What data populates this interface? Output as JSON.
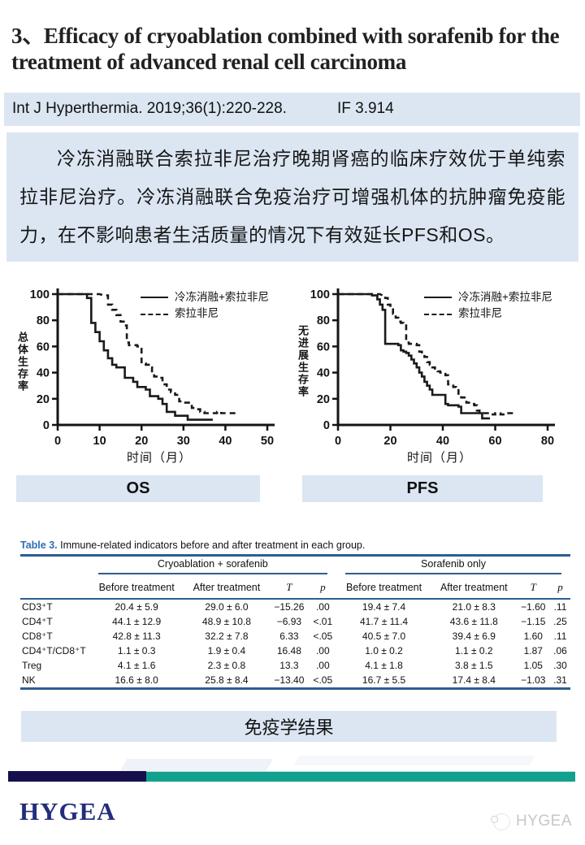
{
  "header": {
    "title": "3、Efficacy of cryoablation combined with sorafenib for the treatment of advanced renal cell carcinoma",
    "journal": "Int J Hyperthermia. 2019;36(1):220-228.",
    "impact_factor": "IF 3.914"
  },
  "summary": {
    "text": "冷冻消融联合索拉非尼治疗晚期肾癌的临床疗效优于单纯索拉非尼治疗。冷冻消融联合免疫治疗可增强机体的抗肿瘤免疫能力，在不影响患者生活质量的情况下有效延长PFS和OS。"
  },
  "chart_data": [
    {
      "type": "line",
      "subtype": "kaplan-meier-step",
      "title": "OS",
      "xlabel": "时间（月）",
      "ylabel": "总体生存率",
      "xlim": [
        0,
        50
      ],
      "ylim": [
        0,
        100
      ],
      "xticks": [
        0,
        10,
        20,
        30,
        40,
        50
      ],
      "yticks": [
        0,
        20,
        40,
        60,
        80,
        100
      ],
      "grid": false,
      "legend_position": "top-right",
      "series": [
        {
          "name": "冷冻消融+索拉非尼",
          "style": "solid",
          "points": [
            [
              0,
              100
            ],
            [
              7,
              100
            ],
            [
              7,
              97
            ],
            [
              8,
              97
            ],
            [
              8,
              78
            ],
            [
              9,
              78
            ],
            [
              9,
              71
            ],
            [
              10,
              71
            ],
            [
              10,
              64
            ],
            [
              11,
              64
            ],
            [
              11,
              57
            ],
            [
              12,
              57
            ],
            [
              12,
              51
            ],
            [
              13,
              51
            ],
            [
              13,
              46
            ],
            [
              14,
              46
            ],
            [
              14,
              44
            ],
            [
              16,
              44
            ],
            [
              16,
              36
            ],
            [
              18,
              36
            ],
            [
              18,
              33
            ],
            [
              19,
              33
            ],
            [
              19,
              29
            ],
            [
              21,
              29
            ],
            [
              21,
              27
            ],
            [
              22,
              27
            ],
            [
              22,
              22
            ],
            [
              24,
              22
            ],
            [
              24,
              20
            ],
            [
              25,
              20
            ],
            [
              25,
              16
            ],
            [
              26,
              16
            ],
            [
              26,
              10
            ],
            [
              28,
              10
            ],
            [
              28,
              7
            ],
            [
              31,
              7
            ],
            [
              31,
              4
            ],
            [
              37,
              4
            ]
          ]
        },
        {
          "name": "索拉非尼",
          "style": "dashed",
          "points": [
            [
              0,
              100
            ],
            [
              10,
              100
            ],
            [
              11,
              99
            ],
            [
              12,
              99
            ],
            [
              12,
              92
            ],
            [
              13,
              92
            ],
            [
              13,
              88
            ],
            [
              14,
              88
            ],
            [
              14,
              84
            ],
            [
              15,
              84
            ],
            [
              15,
              79
            ],
            [
              16,
              79
            ],
            [
              16,
              76
            ],
            [
              16.5,
              76
            ],
            [
              16.5,
              63
            ],
            [
              17,
              63
            ],
            [
              17,
              61
            ],
            [
              19,
              61
            ],
            [
              19,
              60
            ],
            [
              20,
              60
            ],
            [
              20,
              47
            ],
            [
              21,
              47
            ],
            [
              21,
              46
            ],
            [
              22,
              46
            ],
            [
              22,
              44
            ],
            [
              22.5,
              44
            ],
            [
              22.5,
              39
            ],
            [
              23,
              39
            ],
            [
              23,
              37
            ],
            [
              24,
              37
            ],
            [
              24,
              36
            ],
            [
              25,
              36
            ],
            [
              25,
              31
            ],
            [
              26,
              31
            ],
            [
              26,
              27
            ],
            [
              27,
              27
            ],
            [
              27,
              25
            ],
            [
              28,
              25
            ],
            [
              28,
              23
            ],
            [
              29,
              23
            ],
            [
              29,
              18
            ],
            [
              30,
              18
            ],
            [
              30,
              17
            ],
            [
              32,
              17
            ],
            [
              32,
              13
            ],
            [
              33,
              13
            ],
            [
              33,
              12
            ],
            [
              34,
              12
            ],
            [
              34,
              10
            ],
            [
              35,
              10
            ],
            [
              35,
              9
            ],
            [
              38,
              9
            ],
            [
              38,
              10
            ],
            [
              39,
              10
            ],
            [
              39,
              9
            ],
            [
              43,
              9
            ]
          ]
        }
      ]
    },
    {
      "type": "line",
      "subtype": "kaplan-meier-step",
      "title": "PFS",
      "xlabel": "时间（月）",
      "ylabel": "无进展生存率",
      "xlim": [
        0,
        80
      ],
      "ylim": [
        0,
        100
      ],
      "xticks": [
        0,
        20,
        40,
        60,
        80
      ],
      "yticks": [
        0,
        20,
        40,
        60,
        80,
        100
      ],
      "grid": false,
      "legend_position": "top-right",
      "series": [
        {
          "name": "冷冻消融+索拉非尼",
          "style": "solid",
          "points": [
            [
              0,
              100
            ],
            [
              13,
              100
            ],
            [
              13,
              99
            ],
            [
              15,
              99
            ],
            [
              15,
              96
            ],
            [
              16,
              96
            ],
            [
              16,
              92
            ],
            [
              17,
              92
            ],
            [
              17,
              88
            ],
            [
              18,
              88
            ],
            [
              18,
              62
            ],
            [
              23,
              62
            ],
            [
              23,
              61
            ],
            [
              24,
              61
            ],
            [
              24,
              57
            ],
            [
              25,
              57
            ],
            [
              25,
              56
            ],
            [
              26,
              56
            ],
            [
              26,
              55
            ],
            [
              27,
              55
            ],
            [
              27,
              53
            ],
            [
              28,
              53
            ],
            [
              28,
              50
            ],
            [
              29,
              50
            ],
            [
              29,
              47
            ],
            [
              30,
              47
            ],
            [
              30,
              44
            ],
            [
              31,
              44
            ],
            [
              31,
              40
            ],
            [
              32,
              40
            ],
            [
              32,
              37
            ],
            [
              33,
              37
            ],
            [
              33,
              33
            ],
            [
              34,
              33
            ],
            [
              34,
              30
            ],
            [
              35,
              30
            ],
            [
              35,
              27
            ],
            [
              36,
              27
            ],
            [
              36,
              23
            ],
            [
              41,
              23
            ],
            [
              41,
              16
            ],
            [
              42,
              16
            ],
            [
              42,
              15
            ],
            [
              46,
              15
            ],
            [
              46,
              14
            ],
            [
              47,
              14
            ],
            [
              47,
              9
            ],
            [
              55,
              9
            ],
            [
              55,
              5
            ],
            [
              58,
              5
            ]
          ]
        },
        {
          "name": "索拉非尼",
          "style": "dashed",
          "points": [
            [
              0,
              100
            ],
            [
              16,
              100
            ],
            [
              17,
              99
            ],
            [
              18,
              99
            ],
            [
              18,
              97
            ],
            [
              19,
              97
            ],
            [
              19,
              92
            ],
            [
              20,
              92
            ],
            [
              20,
              90
            ],
            [
              21,
              90
            ],
            [
              21,
              85
            ],
            [
              22,
              85
            ],
            [
              22,
              82
            ],
            [
              23,
              82
            ],
            [
              23,
              79
            ],
            [
              24,
              79
            ],
            [
              24,
              78
            ],
            [
              25,
              78
            ],
            [
              25,
              76
            ],
            [
              26,
              76
            ],
            [
              26,
              63
            ],
            [
              27,
              63
            ],
            [
              27,
              62
            ],
            [
              30,
              62
            ],
            [
              30,
              61
            ],
            [
              31,
              61
            ],
            [
              31,
              56
            ],
            [
              32,
              56
            ],
            [
              32,
              54
            ],
            [
              33,
              54
            ],
            [
              33,
              52
            ],
            [
              34,
              52
            ],
            [
              34,
              48
            ],
            [
              35,
              48
            ],
            [
              35,
              46
            ],
            [
              36,
              46
            ],
            [
              36,
              44
            ],
            [
              37,
              44
            ],
            [
              37,
              42
            ],
            [
              38,
              42
            ],
            [
              38,
              41
            ],
            [
              39,
              41
            ],
            [
              39,
              40
            ],
            [
              40,
              40
            ],
            [
              40,
              39
            ],
            [
              41,
              39
            ],
            [
              41,
              38
            ],
            [
              42,
              38
            ],
            [
              42,
              31
            ],
            [
              43,
              31
            ],
            [
              43,
              30
            ],
            [
              44,
              30
            ],
            [
              44,
              29
            ],
            [
              45,
              29
            ],
            [
              45,
              28
            ],
            [
              46,
              28
            ],
            [
              46,
              22
            ],
            [
              47,
              22
            ],
            [
              47,
              21
            ],
            [
              49,
              21
            ],
            [
              49,
              17
            ],
            [
              50,
              17
            ],
            [
              50,
              16
            ],
            [
              52,
              16
            ],
            [
              52,
              15
            ],
            [
              53,
              15
            ],
            [
              53,
              11
            ],
            [
              54,
              11
            ],
            [
              54,
              10
            ],
            [
              55,
              10
            ],
            [
              55,
              9
            ],
            [
              58,
              9
            ],
            [
              58,
              8
            ],
            [
              60,
              8
            ],
            [
              60,
              9
            ],
            [
              62,
              9
            ],
            [
              62,
              8
            ],
            [
              64,
              8
            ],
            [
              64,
              9
            ],
            [
              67,
              9
            ]
          ]
        }
      ]
    }
  ],
  "table": {
    "caption_label": "Table 3.",
    "caption_text": "Immune-related indicators before and after treatment in each group.",
    "groups": [
      "Cryoablation + sorafenib",
      "Sorafenib only"
    ],
    "sub_headers": [
      "Before treatment",
      "After treatment",
      "T",
      "p"
    ],
    "rows": [
      {
        "label": "CD3⁺T",
        "values": [
          "20.4 ± 5.9",
          "29.0 ± 6.0",
          "−15.26",
          ".00",
          "19.4 ± 7.4",
          "21.0 ± 8.3",
          "−1.60",
          ".11"
        ]
      },
      {
        "label": "CD4⁺T",
        "values": [
          "44.1 ± 12.9",
          "48.9 ± 10.8",
          "−6.93",
          "<.01",
          "41.7 ± 11.4",
          "43.6 ± 11.8",
          "−1.15",
          ".25"
        ]
      },
      {
        "label": "CD8⁺T",
        "values": [
          "42.8 ± 11.3",
          "32.2 ± 7.8",
          "6.33",
          "<.05",
          "40.5 ± 7.0",
          "39.4 ± 6.9",
          "1.60",
          ".11"
        ]
      },
      {
        "label": "CD4⁺T/CD8⁺T",
        "values": [
          "1.1 ± 0.3",
          "1.9 ± 0.4",
          "16.48",
          ".00",
          "1.0 ± 0.2",
          "1.1 ± 0.2",
          "1.87",
          ".06"
        ]
      },
      {
        "label": "Treg",
        "values": [
          "4.1 ± 1.6",
          "2.3 ± 0.8",
          "13.3",
          ".00",
          "4.1 ± 1.8",
          "3.8 ± 1.5",
          "1.05",
          ".30"
        ]
      },
      {
        "label": "NK",
        "values": [
          "16.6 ± 8.0",
          "25.8 ± 8.4",
          "−13.40",
          "<.05",
          "16.7 ± 5.5",
          "17.4 ± 8.4",
          "−1.03",
          ".31"
        ]
      }
    ]
  },
  "footer": {
    "result_label": "免疫学结果",
    "logo": "HYGEA",
    "watermark_text": "HYGEA"
  },
  "colors": {
    "accent_box": "#dbe6f2",
    "table_rule_blue": "#2d5e91",
    "caption_blue": "#2f6db5",
    "divider_navy": "#15104d",
    "divider_teal": "#12a18e",
    "logo_navy": "#232d7d",
    "curve_black": "#1a1a1a"
  }
}
